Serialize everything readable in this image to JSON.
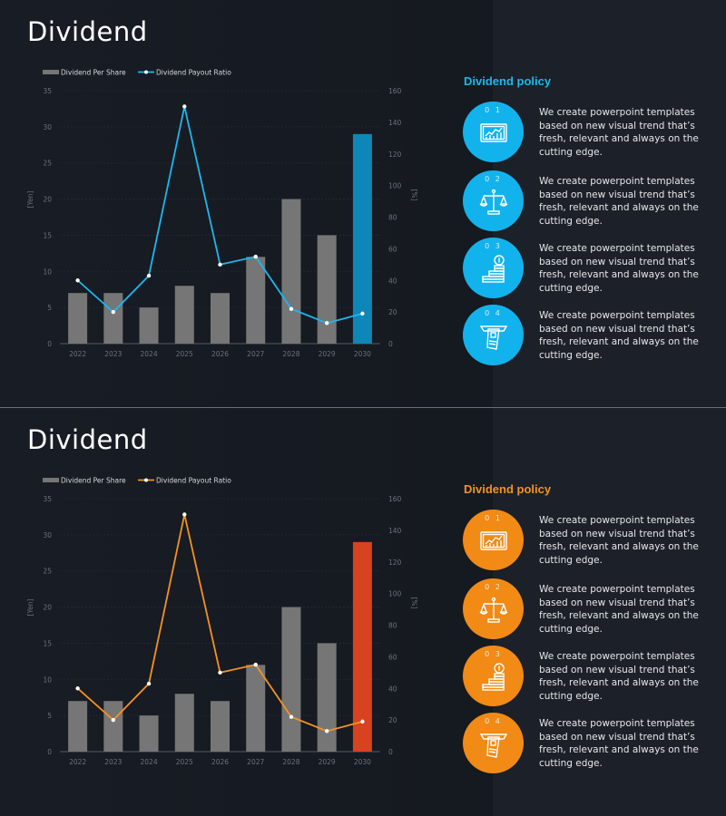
{
  "slides": [
    {
      "title": "Dividend",
      "theme": "blue",
      "accent": "#1ab8f0",
      "highlight": "#0e86b8",
      "policy": {
        "title": "Dividend policy",
        "items": [
          {
            "num": "0 1",
            "icon": "monitor-chart-icon",
            "text": "We create powerpoint templates based on new visual trend that’s fresh, relevant and always on the cutting edge."
          },
          {
            "num": "0 2",
            "icon": "balance-scale-icon",
            "text": "We create powerpoint templates based on new visual trend that’s fresh, relevant and always on the cutting edge."
          },
          {
            "num": "0 3",
            "icon": "coin-stack-icon",
            "text": "We create powerpoint templates based on new visual trend that’s fresh, relevant and always on the cutting edge."
          },
          {
            "num": "0 4",
            "icon": "card-slot-icon",
            "text": "We create powerpoint templates based on new visual trend that’s fresh, relevant and always on the cutting edge."
          }
        ]
      }
    },
    {
      "title": "Dividend",
      "theme": "orange",
      "accent": "#f5931e",
      "highlight": "#d9421e",
      "policy": {
        "title": "Dividend policy",
        "items": [
          {
            "num": "0 1",
            "icon": "monitor-chart-icon",
            "text": "We create powerpoint templates based on new visual trend that’s fresh, relevant and always on the cutting edge."
          },
          {
            "num": "0 2",
            "icon": "balance-scale-icon",
            "text": "We create powerpoint templates based on new visual trend that’s fresh, relevant and always on the cutting edge."
          },
          {
            "num": "0 3",
            "icon": "coin-stack-icon",
            "text": "We create powerpoint templates based on new visual trend that’s fresh, relevant and always on the cutting edge."
          },
          {
            "num": "0 4",
            "icon": "card-slot-icon",
            "text": "We create powerpoint templates based on new visual trend that’s fresh, relevant and always on the cutting edge."
          }
        ]
      }
    }
  ],
  "chart_data": [
    {
      "type": "bar+line",
      "categories": [
        "2022",
        "2023",
        "2024",
        "2025",
        "2026",
        "2027",
        "2028",
        "2029",
        "2030"
      ],
      "series": [
        {
          "name": "Dividend Per Share",
          "type": "bar",
          "axis": "left",
          "values": [
            7,
            7,
            5,
            8,
            7,
            12,
            20,
            15,
            29
          ],
          "color": "#767676",
          "highlight_index": 8,
          "highlight_color": "#0e86b8"
        },
        {
          "name": "Dividend Payout Ratio",
          "type": "line",
          "axis": "right",
          "values": [
            40,
            20,
            43,
            150,
            50,
            55,
            22,
            13,
            19
          ],
          "color": "#1ab8f0"
        }
      ],
      "ylabel": "[Yen]",
      "y2label": "[%]",
      "ylim": [
        0,
        35
      ],
      "yticks": [
        0,
        5,
        10,
        15,
        20,
        25,
        30,
        35
      ],
      "y2lim": [
        0,
        160
      ],
      "y2ticks": [
        0,
        20,
        40,
        60,
        80,
        100,
        120,
        140,
        160
      ],
      "legend": "top-left"
    },
    {
      "type": "bar+line",
      "categories": [
        "2022",
        "2023",
        "2024",
        "2025",
        "2026",
        "2027",
        "2028",
        "2029",
        "2030"
      ],
      "series": [
        {
          "name": "Dividend Per Share",
          "type": "bar",
          "axis": "left",
          "values": [
            7,
            7,
            5,
            8,
            7,
            12,
            20,
            15,
            29
          ],
          "color": "#767676",
          "highlight_index": 8,
          "highlight_color": "#d9421e"
        },
        {
          "name": "Dividend Payout Ratio",
          "type": "line",
          "axis": "right",
          "values": [
            40,
            20,
            43,
            150,
            50,
            55,
            22,
            13,
            19
          ],
          "color": "#f5931e"
        }
      ],
      "ylabel": "[Yen]",
      "y2label": "[%]",
      "ylim": [
        0,
        35
      ],
      "yticks": [
        0,
        5,
        10,
        15,
        20,
        25,
        30,
        35
      ],
      "y2lim": [
        0,
        160
      ],
      "y2ticks": [
        0,
        20,
        40,
        60,
        80,
        100,
        120,
        140,
        160
      ],
      "legend": "top-left"
    }
  ]
}
